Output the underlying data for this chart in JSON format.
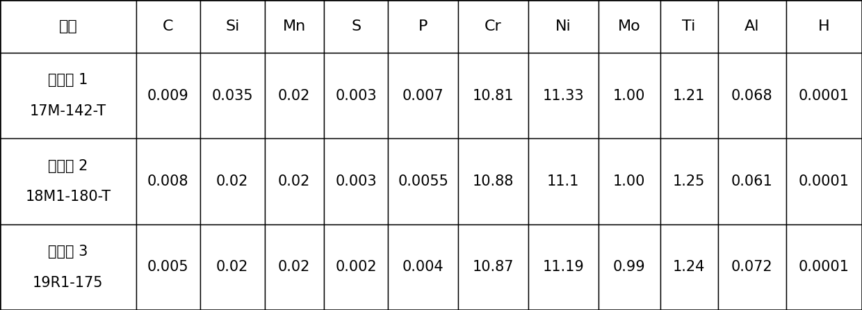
{
  "headers": [
    "元素",
    "C",
    "Si",
    "Mn",
    "S",
    "P",
    "Cr",
    "Ni",
    "Mo",
    "Ti",
    "Al",
    "H"
  ],
  "rows": [
    {
      "label_line1": "实施例 1",
      "label_line2": "17M-142-T",
      "values": [
        "0.009",
        "0.035",
        "0.02",
        "0.003",
        "0.007",
        "10.81",
        "11.33",
        "1.00",
        "1.21",
        "0.068",
        "0.0001"
      ]
    },
    {
      "label_line1": "实施例 2",
      "label_line2": "18M1-180-T",
      "values": [
        "0.008",
        "0.02",
        "0.02",
        "0.003",
        "0.0055",
        "10.88",
        "11.1",
        "1.00",
        "1.25",
        "0.061",
        "0.0001"
      ]
    },
    {
      "label_line1": "实施例 3",
      "label_line2": "19R1-175",
      "values": [
        "0.005",
        "0.02",
        "0.02",
        "0.002",
        "0.004",
        "10.87",
        "11.19",
        "0.99",
        "1.24",
        "0.072",
        "0.0001"
      ]
    }
  ],
  "col_widths": [
    1.65,
    0.78,
    0.78,
    0.72,
    0.78,
    0.85,
    0.85,
    0.85,
    0.75,
    0.7,
    0.83,
    0.92
  ],
  "background_color": "#ffffff",
  "border_color": "#000000",
  "text_color": "#000000",
  "header_fontsize": 16,
  "cell_fontsize": 15,
  "fig_width": 12.4,
  "fig_height": 4.46
}
